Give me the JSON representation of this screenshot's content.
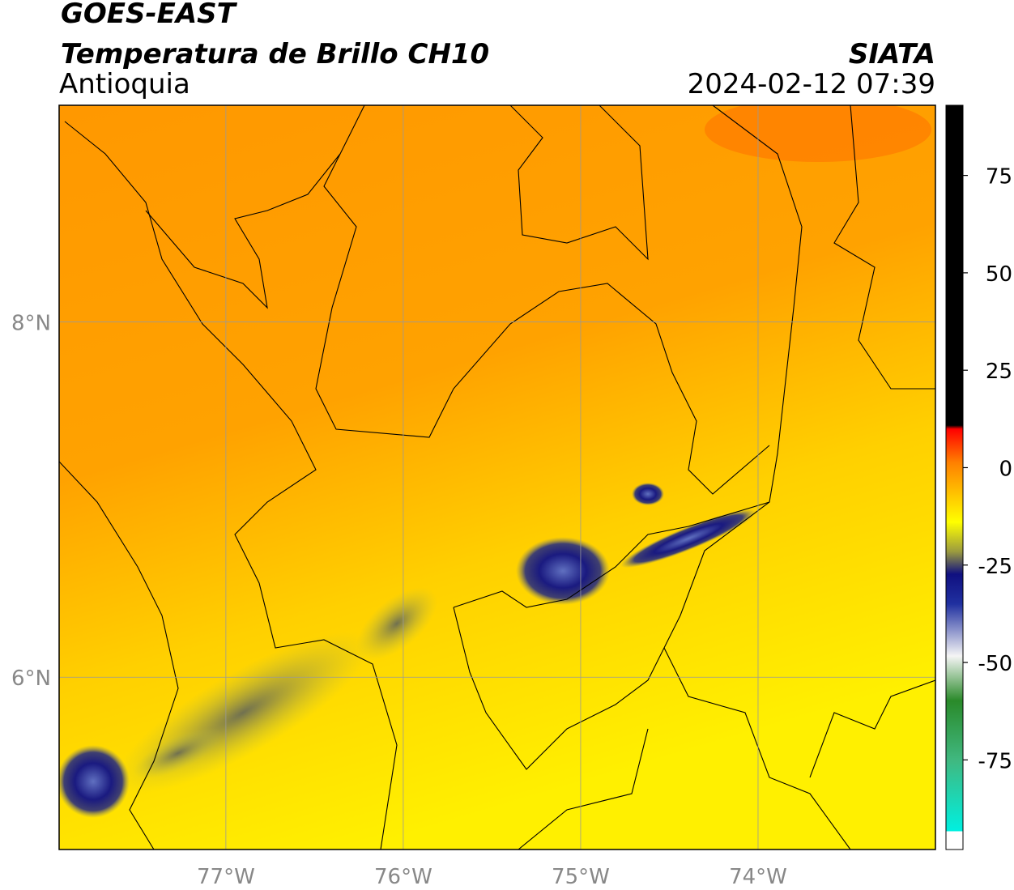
{
  "chart_data": {
    "type": "map",
    "title": "GOES-EAST",
    "subtitle": "Temperatura de Brillo CH10",
    "region": "Antioquia",
    "source": "SIATA",
    "datetime": "2024-02-12 07:39",
    "xlim": [
      -77.94,
      -73.0
    ],
    "ylim": [
      5.03,
      9.22
    ],
    "xticks": [
      {
        "value": -77,
        "label": "77°W"
      },
      {
        "value": -76,
        "label": "76°W"
      },
      {
        "value": -75,
        "label": "75°W"
      },
      {
        "value": -74,
        "label": "74°W"
      }
    ],
    "yticks": [
      {
        "value": 8,
        "label": "8°N"
      },
      {
        "value": 6,
        "label": "6°N"
      }
    ],
    "grid": true,
    "colorbar": {
      "lim": [
        -98,
        93
      ],
      "ticks": [
        75,
        50,
        25,
        0,
        -25,
        -50,
        -75
      ]
    }
  }
}
